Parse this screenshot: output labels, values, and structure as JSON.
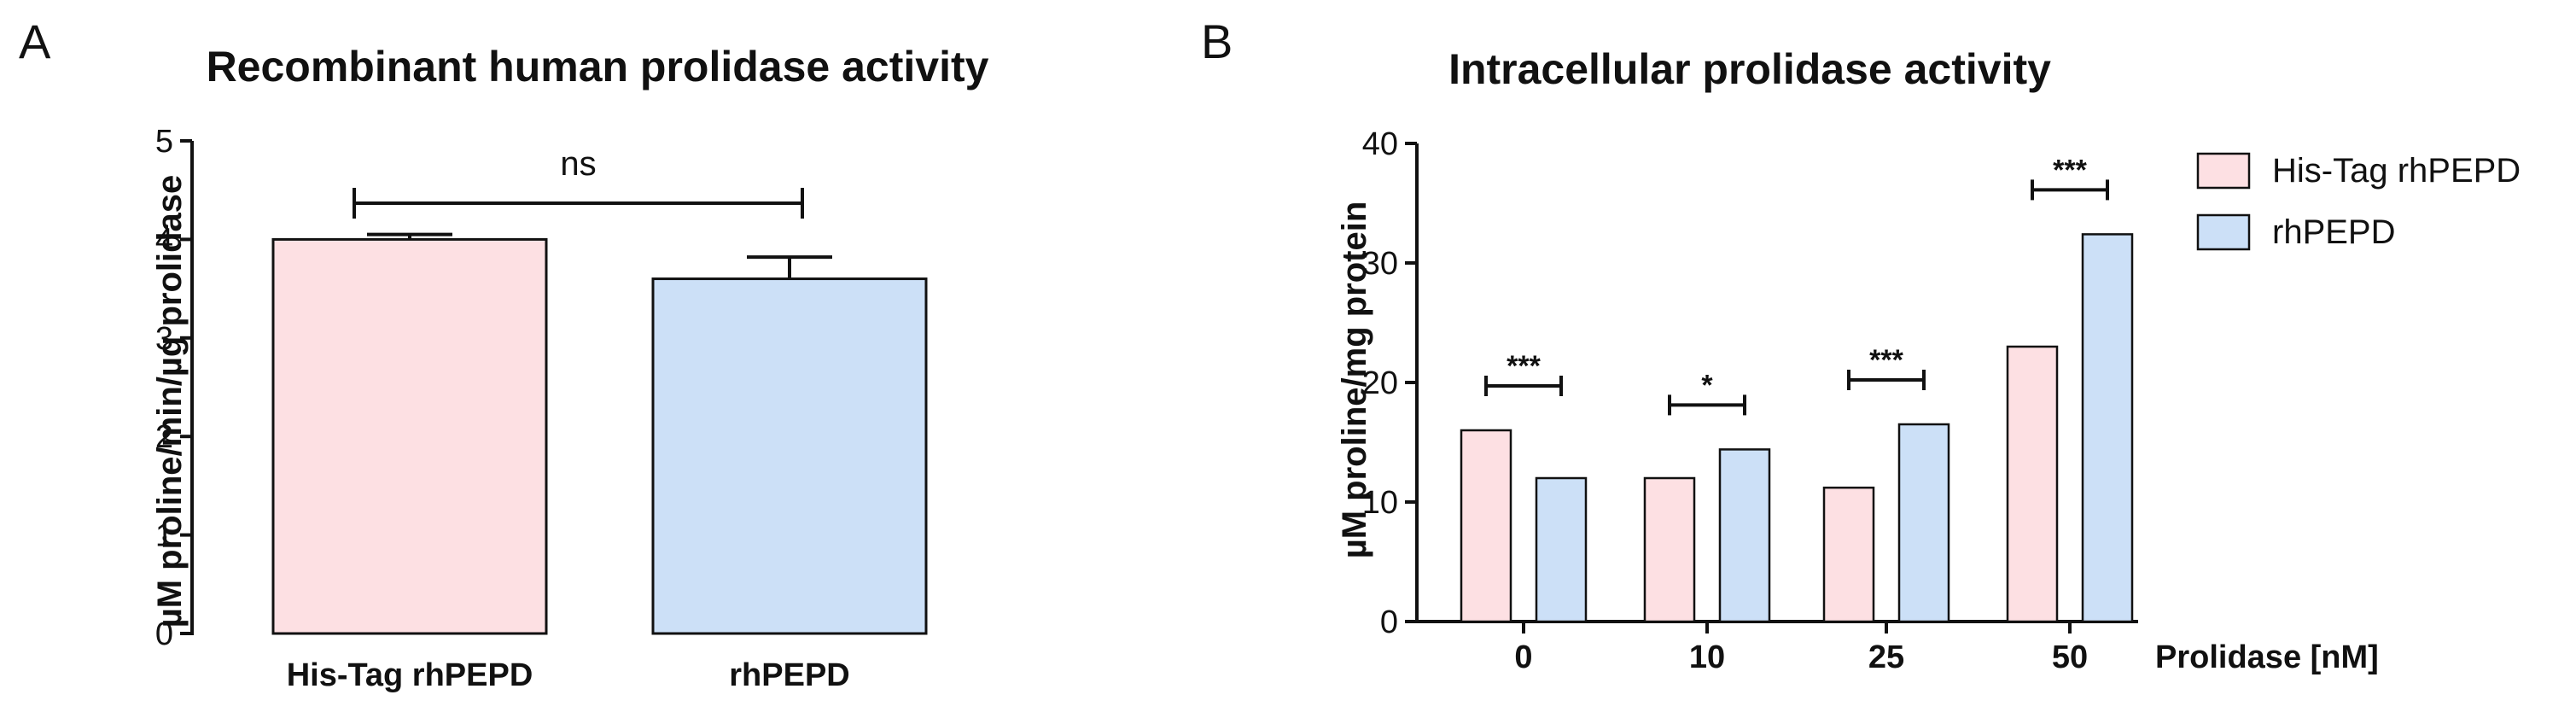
{
  "chart_data": [
    {
      "panel": "A",
      "type": "bar",
      "title": "Recombinant human prolidase activity",
      "ylabel": "µM proline/min/µg prolidase",
      "xlabel": "",
      "ylim": [
        0,
        5
      ],
      "yticks": [
        "0",
        "1",
        "2",
        "3",
        "4",
        "5"
      ],
      "categories": [
        "His-Tag rhPEPD",
        "rhPEPD"
      ],
      "values": [
        4.0,
        3.6
      ],
      "errors": [
        0.05,
        0.22
      ],
      "colors": [
        "#fde0e3",
        "#cce0f7"
      ],
      "annotations": [
        {
          "from": 0,
          "to": 1,
          "label": "ns"
        }
      ]
    },
    {
      "panel": "B",
      "type": "bar",
      "title": "Intracellular prolidase activity",
      "ylabel": "µM proline/mg protein",
      "xlabel": "Prolidase [nM]",
      "ylim": [
        0,
        40
      ],
      "yticks": [
        "0",
        "10",
        "20",
        "30",
        "40"
      ],
      "categories": [
        "0",
        "10",
        "25",
        "50"
      ],
      "series": [
        {
          "name": "His-Tag rhPEPD",
          "color": "#fde0e3",
          "values": [
            16,
            12,
            11.2,
            23
          ]
        },
        {
          "name": "rhPEPD",
          "color": "#cce0f7",
          "values": [
            12,
            14.4,
            16.5,
            32.4
          ]
        }
      ],
      "significance": [
        "***",
        "*",
        "***",
        "***"
      ],
      "legend_position": "top-right"
    }
  ]
}
